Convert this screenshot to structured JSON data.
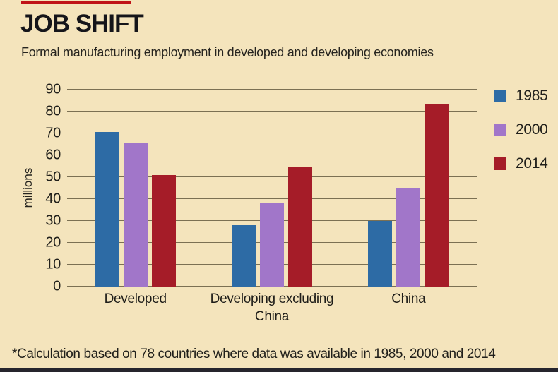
{
  "page": {
    "background": "#f4e4bc"
  },
  "header": {
    "title": "JOB SHIFT",
    "subtitle": "Formal manufacturing employment in developed and developing economies",
    "accent_color": "#c01318"
  },
  "footer": {
    "note": "*Calculation based on 78 countries where data was available in 1985, 2000 and 2014"
  },
  "chart_data": {
    "type": "bar",
    "title": "JOB SHIFT",
    "subtitle": "Formal manufacturing employment in developed and developing economies",
    "xlabel": "",
    "ylabel": "millions",
    "ylim": [
      0,
      90
    ],
    "ytick_step": 10,
    "yticks": [
      0,
      10,
      20,
      30,
      40,
      50,
      60,
      70,
      80,
      90
    ],
    "grid": true,
    "gridline_color": "#7b7053",
    "legend_position": "right",
    "categories": [
      "Developed",
      "Developing excluding China",
      "China"
    ],
    "series": [
      {
        "name": "1985",
        "color": "#2d6ba5",
        "values": [
          70.5,
          28,
          30
        ]
      },
      {
        "name": "2000",
        "color": "#a176c9",
        "values": [
          65.5,
          38,
          45
        ]
      },
      {
        "name": "2014",
        "color": "#a51c28",
        "values": [
          51,
          54.5,
          83.5
        ]
      }
    ],
    "annotation": "*Calculation based on 78 countries where data was available in 1985, 2000 and 2014"
  }
}
